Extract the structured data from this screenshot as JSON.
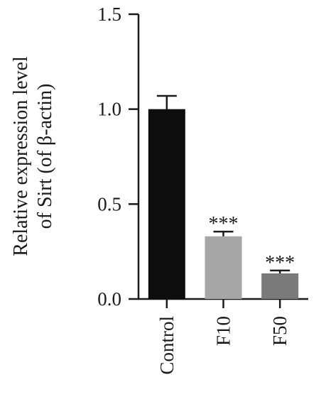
{
  "chart_data": {
    "type": "bar",
    "title": "",
    "ylabel_lines": [
      "Relative expression level",
      "of Sirt (of β-actin)"
    ],
    "categories": [
      "Control",
      "F10",
      "F50"
    ],
    "values": [
      1.0,
      0.33,
      0.135
    ],
    "errors": [
      0.07,
      0.025,
      0.015
    ],
    "annotations": [
      "",
      "***",
      "***"
    ],
    "colors": [
      "#0d0d0d",
      "#a6a6a6",
      "#7a7a7a"
    ],
    "ylim": [
      0,
      1.5
    ],
    "yticks": [
      0.0,
      0.5,
      1.0,
      1.5
    ],
    "ytick_labels": [
      "0.0",
      "0.5",
      "1.0",
      "1.5"
    ],
    "grid": false,
    "legend": "none"
  }
}
